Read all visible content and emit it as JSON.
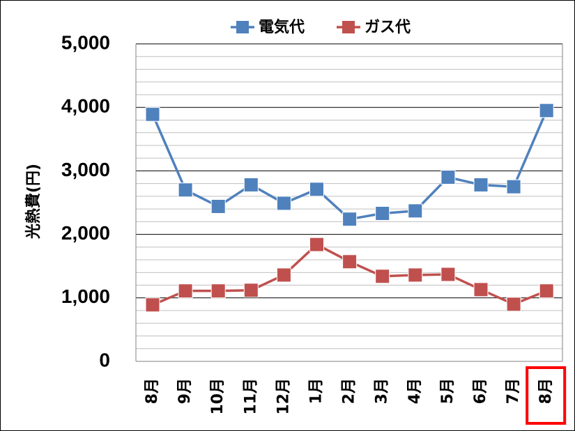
{
  "chart_data": {
    "type": "line",
    "categories": [
      "8月",
      "9月",
      "10月",
      "11月",
      "12月",
      "1月",
      "2月",
      "3月",
      "4月",
      "5月",
      "6月",
      "7月",
      "8月"
    ],
    "series": [
      {
        "name": "電気代",
        "color": "#4F81BD",
        "values": [
          3890,
          2700,
          2440,
          2780,
          2490,
          2710,
          2240,
          2330,
          2370,
          2900,
          2780,
          2750,
          3950
        ]
      },
      {
        "name": "ガス代",
        "color": "#C0504D",
        "values": [
          890,
          1110,
          1110,
          1120,
          1360,
          1840,
          1570,
          1340,
          1360,
          1370,
          1130,
          900,
          1110
        ]
      }
    ],
    "ylabel": "光熱費(円)",
    "xlabel": "",
    "ylim": [
      0,
      5000
    ],
    "ytick_labels": [
      "0",
      "1,000",
      "2,000",
      "3,000",
      "4,000",
      "5,000"
    ],
    "ytick_values": [
      0,
      1000,
      2000,
      3000,
      4000,
      5000
    ],
    "minor_step": 200,
    "grid": true,
    "legend_position": "top-center",
    "highlighted_category_index": 12,
    "highlight_color": "#FF0000"
  }
}
